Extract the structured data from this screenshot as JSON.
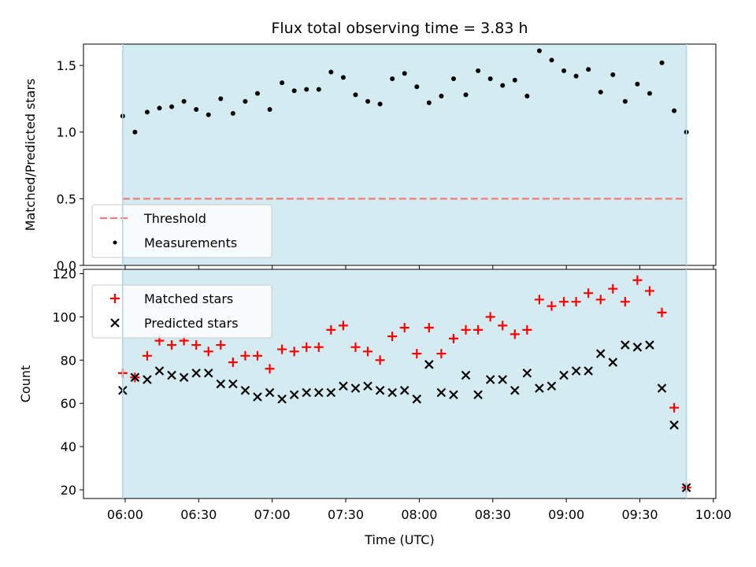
{
  "chart_data": [
    {
      "type": "scatter",
      "title": "Flux total observing time = 3.83 h",
      "xlabel": "",
      "ylabel": "Matched/Predicted stars",
      "ylim": [
        0,
        1.66
      ],
      "yticks": [
        0.0,
        0.5,
        1.0,
        1.5
      ],
      "ytick_labels": [
        "0.0",
        "0.5",
        "1.0",
        "1.5"
      ],
      "x_range": [
        "05:43",
        "10:01"
      ],
      "shaded_span": [
        "05:59",
        "09:49"
      ],
      "shaded_color": "#d4ebf1",
      "threshold": {
        "name": "Threshold",
        "y": 0.5,
        "x": [
          "05:59",
          "09:49"
        ],
        "color": "#f07c7c"
      },
      "series": [
        {
          "name": "Measurements",
          "color": "#000000",
          "marker": "dot",
          "x": [
            "05:59",
            "06:04",
            "06:09",
            "06:14",
            "06:19",
            "06:24",
            "06:29",
            "06:34",
            "06:39",
            "06:44",
            "06:49",
            "06:54",
            "06:59",
            "07:04",
            "07:09",
            "07:14",
            "07:19",
            "07:24",
            "07:29",
            "07:34",
            "07:39",
            "07:44",
            "07:49",
            "07:54",
            "07:59",
            "08:04",
            "08:09",
            "08:14",
            "08:19",
            "08:24",
            "08:29",
            "08:34",
            "08:39",
            "08:44",
            "08:49",
            "08:54",
            "08:59",
            "09:04",
            "09:09",
            "09:14",
            "09:19",
            "09:24",
            "09:29",
            "09:34",
            "09:39",
            "09:44",
            "09:49"
          ],
          "values": [
            1.12,
            1.0,
            1.15,
            1.18,
            1.19,
            1.23,
            1.17,
            1.13,
            1.25,
            1.14,
            1.23,
            1.29,
            1.17,
            1.37,
            1.31,
            1.32,
            1.32,
            1.45,
            1.41,
            1.28,
            1.23,
            1.21,
            1.4,
            1.44,
            1.34,
            1.22,
            1.27,
            1.4,
            1.28,
            1.46,
            1.4,
            1.35,
            1.39,
            1.27,
            1.61,
            1.54,
            1.46,
            1.42,
            1.47,
            1.3,
            1.43,
            1.23,
            1.36,
            1.29,
            1.52,
            1.16,
            1.0
          ]
        }
      ],
      "legend": {
        "placement": "lower-left",
        "entries": [
          "Threshold",
          "Measurements"
        ]
      },
      "grid": false
    },
    {
      "type": "scatter",
      "title": "",
      "xlabel": "Time (UTC)",
      "ylabel": "Count",
      "ylim": [
        16,
        122
      ],
      "yticks": [
        20,
        40,
        60,
        80,
        100,
        120
      ],
      "ytick_labels": [
        "20",
        "40",
        "60",
        "80",
        "100",
        "120"
      ],
      "x_range": [
        "05:43",
        "10:01"
      ],
      "xticks": [
        "06:00",
        "06:30",
        "07:00",
        "07:30",
        "08:00",
        "08:30",
        "09:00",
        "09:30",
        "10:00"
      ],
      "xtick_labels": [
        "06:00",
        "06:30",
        "07:00",
        "07:30",
        "08:00",
        "08:30",
        "09:00",
        "09:30",
        "10:00"
      ],
      "shaded_span": [
        "05:59",
        "09:49"
      ],
      "shaded_color": "#d4ebf1",
      "series": [
        {
          "name": "Matched stars",
          "color": "#ff0000",
          "marker": "plus",
          "x": [
            "05:59",
            "06:04",
            "06:09",
            "06:14",
            "06:19",
            "06:24",
            "06:29",
            "06:34",
            "06:39",
            "06:44",
            "06:49",
            "06:54",
            "06:59",
            "07:04",
            "07:09",
            "07:14",
            "07:19",
            "07:24",
            "07:29",
            "07:34",
            "07:39",
            "07:44",
            "07:49",
            "07:54",
            "07:59",
            "08:04",
            "08:09",
            "08:14",
            "08:19",
            "08:24",
            "08:29",
            "08:34",
            "08:39",
            "08:44",
            "08:49",
            "08:54",
            "08:59",
            "09:04",
            "09:09",
            "09:14",
            "09:19",
            "09:24",
            "09:29",
            "09:34",
            "09:39",
            "09:44",
            "09:49"
          ],
          "values": [
            74,
            72,
            82,
            89,
            87,
            89,
            87,
            84,
            87,
            79,
            82,
            82,
            76,
            85,
            84,
            86,
            86,
            94,
            96,
            86,
            84,
            80,
            91,
            95,
            83,
            95,
            83,
            90,
            94,
            94,
            100,
            96,
            92,
            94,
            108,
            105,
            107,
            107,
            111,
            108,
            113,
            107,
            117,
            112,
            102,
            58,
            21
          ]
        },
        {
          "name": "Predicted stars",
          "color": "#000000",
          "marker": "x",
          "x": [
            "05:59",
            "06:04",
            "06:09",
            "06:14",
            "06:19",
            "06:24",
            "06:29",
            "06:34",
            "06:39",
            "06:44",
            "06:49",
            "06:54",
            "06:59",
            "07:04",
            "07:09",
            "07:14",
            "07:19",
            "07:24",
            "07:29",
            "07:34",
            "07:39",
            "07:44",
            "07:49",
            "07:54",
            "07:59",
            "08:04",
            "08:09",
            "08:14",
            "08:19",
            "08:24",
            "08:29",
            "08:34",
            "08:39",
            "08:44",
            "08:49",
            "08:54",
            "08:59",
            "09:04",
            "09:09",
            "09:14",
            "09:19",
            "09:24",
            "09:29",
            "09:34",
            "09:39",
            "09:44",
            "09:49"
          ],
          "values": [
            66,
            72,
            71,
            75,
            73,
            72,
            74,
            74,
            69,
            69,
            66,
            63,
            65,
            62,
            64,
            65,
            65,
            65,
            68,
            67,
            68,
            66,
            65,
            66,
            62,
            78,
            65,
            64,
            73,
            64,
            71,
            71,
            66,
            74,
            67,
            68,
            73,
            75,
            75,
            83,
            79,
            87,
            86,
            87,
            67,
            50,
            21
          ]
        }
      ],
      "legend": {
        "placement": "upper-left",
        "entries": [
          "Matched stars",
          "Predicted stars"
        ]
      },
      "grid": false
    }
  ]
}
